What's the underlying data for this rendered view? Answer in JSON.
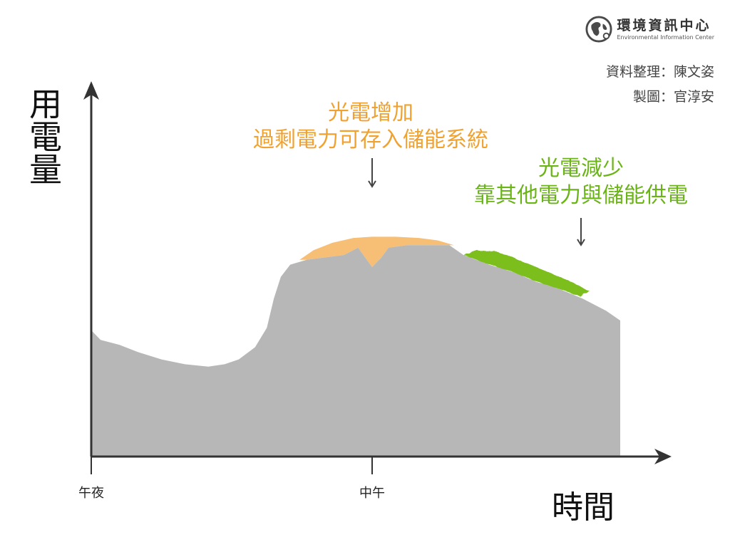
{
  "logo": {
    "name_cn": "環境資訊中心",
    "name_en": "Environmental Information Center"
  },
  "credits": {
    "data": "資料整理：陳文姿",
    "design": "製圖：官淳安"
  },
  "chart_data": {
    "type": "area",
    "ylabel": "用電量",
    "xlabel": "時間",
    "x_ticks": [
      {
        "label": "午夜",
        "x": 0
      },
      {
        "label": "中午",
        "x": 12
      }
    ],
    "xlim": [
      0,
      24
    ],
    "ylim": [
      0,
      100
    ],
    "grid": false,
    "legend": "none",
    "colors": {
      "demand": "#b7b7b7",
      "surplus": "#f7be75",
      "deficit": "#7cbf1e",
      "axis": "#333333"
    },
    "series": [
      {
        "key": "demand",
        "points": [
          [
            0.0,
            52
          ],
          [
            0.4,
            48
          ],
          [
            1.2,
            46
          ],
          [
            2.0,
            43
          ],
          [
            3.0,
            40
          ],
          [
            4.0,
            38
          ],
          [
            5.0,
            37
          ],
          [
            5.7,
            38
          ],
          [
            6.3,
            40
          ],
          [
            7.0,
            45
          ],
          [
            7.5,
            53
          ],
          [
            7.8,
            65
          ],
          [
            8.1,
            74
          ],
          [
            8.5,
            79
          ],
          [
            9.2,
            81
          ],
          [
            10.0,
            82
          ],
          [
            10.8,
            83
          ],
          [
            11.4,
            86
          ],
          [
            11.7,
            82
          ],
          [
            12.0,
            78
          ],
          [
            12.4,
            82
          ],
          [
            12.7,
            86
          ],
          [
            13.5,
            87
          ],
          [
            14.5,
            87
          ],
          [
            15.3,
            87
          ],
          [
            15.9,
            83
          ],
          [
            17.0,
            79
          ],
          [
            18.0,
            76
          ],
          [
            19.0,
            72
          ],
          [
            20.0,
            69
          ],
          [
            21.0,
            65
          ],
          [
            22.0,
            60
          ],
          [
            22.6,
            56
          ]
        ]
      },
      {
        "key": "surplus",
        "points": [
          [
            8.9,
            81
          ],
          [
            9.5,
            85
          ],
          [
            10.3,
            88
          ],
          [
            11.2,
            90
          ],
          [
            12.0,
            90.5
          ],
          [
            13.0,
            90.5
          ],
          [
            14.0,
            90
          ],
          [
            14.8,
            89
          ],
          [
            15.5,
            87
          ],
          [
            15.3,
            87
          ],
          [
            14.5,
            87
          ],
          [
            13.5,
            87
          ],
          [
            12.7,
            86
          ],
          [
            12.4,
            82
          ],
          [
            12.0,
            78
          ],
          [
            11.7,
            82
          ],
          [
            11.4,
            86
          ],
          [
            10.8,
            83
          ],
          [
            10.0,
            82
          ],
          [
            9.2,
            81
          ]
        ]
      },
      {
        "key": "deficit",
        "points": [
          [
            15.9,
            83
          ],
          [
            16.5,
            85
          ],
          [
            17.5,
            84
          ],
          [
            18.5,
            80
          ],
          [
            19.5,
            76
          ],
          [
            20.5,
            72
          ],
          [
            21.3,
            68
          ],
          [
            20.9,
            66
          ],
          [
            20.0,
            69
          ],
          [
            19.0,
            72
          ],
          [
            18.0,
            76
          ],
          [
            17.0,
            79
          ]
        ]
      }
    ],
    "annotations": [
      {
        "key": "surplus",
        "lines": [
          "光電增加",
          "過剩電力可存入儲能系統"
        ],
        "color": "#f0a230",
        "target": [
          12.0,
          91
        ]
      },
      {
        "key": "deficit",
        "lines": [
          "光電減少",
          "靠其他電力與儲能供電"
        ],
        "color": "#6ab417",
        "target": [
          18.5,
          81
        ]
      }
    ]
  }
}
